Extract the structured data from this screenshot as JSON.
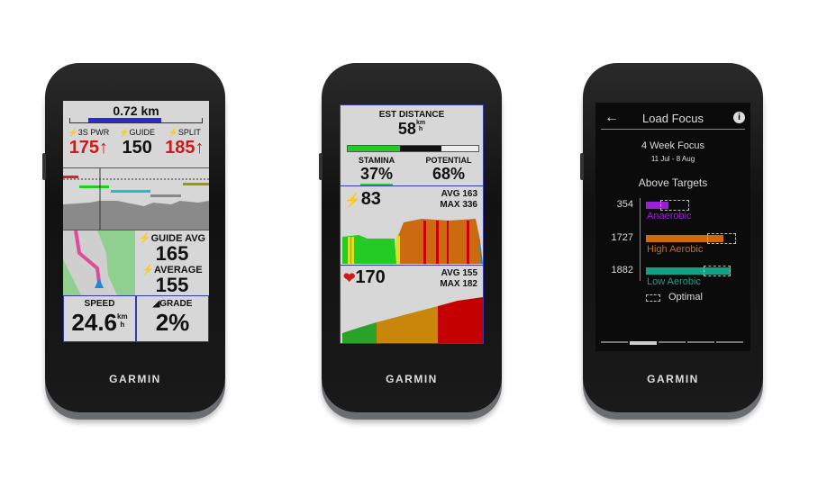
{
  "brand": "GARMIN",
  "device1": {
    "distance": "0.72 km",
    "distance_progress": 0.75,
    "fields": [
      {
        "label": "3S PWR",
        "value": "175↑",
        "color": "#d01818"
      },
      {
        "label": "GUIDE",
        "value": "150",
        "color": "#111111"
      },
      {
        "label": "SPLIT",
        "value": "185↑",
        "color": "#d01818"
      }
    ],
    "guide_avg_label": "GUIDE AVG",
    "guide_avg": "165",
    "average_label": "AVERAGE",
    "average": "155",
    "speed_label": "SPEED",
    "speed": "24.6",
    "speed_unit_top": "km",
    "speed_unit_bottom": "h",
    "grade_label": "GRADE",
    "grade": "2%"
  },
  "device2": {
    "est_label": "EST DISTANCE",
    "est_value": "58",
    "est_unit_top": "km",
    "est_unit_bottom": "h",
    "stamina_label": "STAMINA",
    "stamina": "37%",
    "potential_label": "POTENTIAL",
    "potential": "68%",
    "power": "83",
    "power_avg": "AVG 163",
    "power_max": "MAX 336",
    "hr": "170",
    "hr_avg": "AVG 155",
    "hr_max": "MAX 182"
  },
  "device3": {
    "title": "Load Focus",
    "subtitle": "4 Week Focus",
    "dates": "11 Jul - 8 Aug",
    "status": "Above Targets",
    "bars": [
      {
        "value": "354",
        "label": "Anaerobic",
        "color": "#9b1fd6",
        "fill": 0.27
      },
      {
        "value": "1727",
        "label": "High Aerobic",
        "color": "#d06a08",
        "fill": 0.92
      },
      {
        "value": "1882",
        "label": "Low Aerobic",
        "color": "#11a386",
        "fill": 1.0
      }
    ],
    "legend": "Optimal",
    "page_index": 1,
    "page_count": 5
  }
}
